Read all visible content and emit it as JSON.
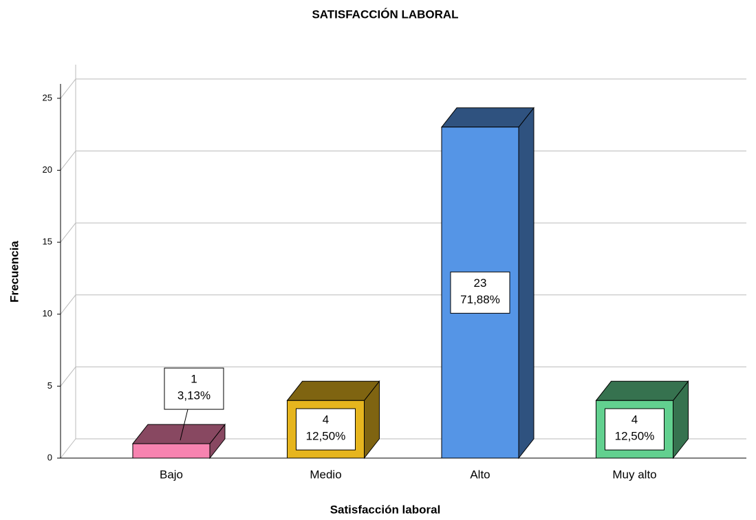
{
  "chart_data": {
    "type": "bar3d",
    "title": "SATISFACCIÓN LABORAL",
    "x_label": "Satisfacción laboral",
    "y_label": "Frecuencia",
    "categories": [
      "Bajo",
      "Medio",
      "Alto",
      "Muy alto"
    ],
    "values": [
      1,
      4,
      23,
      4
    ],
    "percent_labels": [
      "3,13%",
      "12,50%",
      "71,88%",
      "12,50%"
    ],
    "colors": [
      "#f783b0",
      "#e6b51e",
      "#5595e6",
      "#62d08f"
    ],
    "ylim": [
      0,
      26
    ],
    "yticks": [
      0,
      5,
      10,
      15,
      20,
      25
    ],
    "grid": true
  }
}
